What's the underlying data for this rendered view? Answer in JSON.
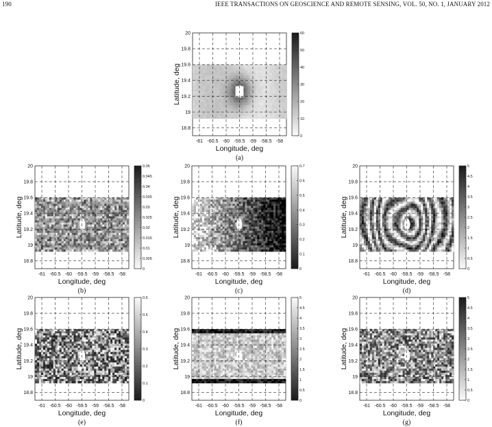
{
  "header": {
    "page_number": "190",
    "journal": "IEEE TRANSACTIONS ON GEOSCIENCE AND REMOTE SENSING, VOL. 50, NO. 1, JANUARY 2012"
  },
  "axes": {
    "xlabel": "Longitude, deg",
    "ylabel": "Latitude, deg",
    "xticks": [
      "-61",
      "-60.5",
      "-60",
      "-59.5",
      "-59",
      "-58.5",
      "-58"
    ],
    "yticks": [
      "20",
      "19.8",
      "19.6",
      "19.4",
      "19.2",
      "19",
      "18.8"
    ]
  },
  "panels": [
    {
      "caption": "(a)",
      "style": "a",
      "cbar_ticks": [
        "60",
        "50",
        "40",
        "30",
        "20",
        "10",
        "0"
      ],
      "cbar_dark_top": true
    },
    {
      "caption": "(b)",
      "style": "b",
      "cbar_ticks": [
        "0.05",
        "0.045",
        "0.04",
        "0.035",
        "0.03",
        "0.025",
        "0.02",
        "0.015",
        "0.01",
        "0.005",
        "0"
      ],
      "cbar_dark_top": true
    },
    {
      "caption": "(c)",
      "style": "c",
      "cbar_ticks": [
        "0.7",
        "0.6",
        "0.5",
        "0.4",
        "0.3",
        "0.2",
        "0.1",
        "0"
      ],
      "cbar_dark_top": false
    },
    {
      "caption": "(d)",
      "style": "d",
      "cbar_ticks": [
        "5",
        "4.5",
        "4",
        "3.5",
        "3",
        "2.5",
        "2",
        "1.5",
        "1",
        "0.5",
        "0"
      ],
      "cbar_dark_top": true
    },
    {
      "caption": "(e)",
      "style": "e",
      "cbar_ticks": [
        "0.6",
        "0.5",
        "0.4",
        "0.3",
        "0.2",
        "0.1",
        "0"
      ],
      "cbar_dark_top": false
    },
    {
      "caption": "(f)",
      "style": "f",
      "cbar_ticks": [
        "5",
        "4.5",
        "4",
        "3.5",
        "3",
        "2.5",
        "2",
        "1.5",
        "1",
        "0.5",
        "0"
      ],
      "cbar_dark_top": false
    },
    {
      "caption": "(g)",
      "style": "g",
      "cbar_ticks": [
        "5",
        "4.5",
        "4",
        "3.5",
        "3",
        "2.5",
        "2",
        "1.5",
        "1",
        "0.5",
        "0"
      ],
      "cbar_dark_top": true
    }
  ]
}
